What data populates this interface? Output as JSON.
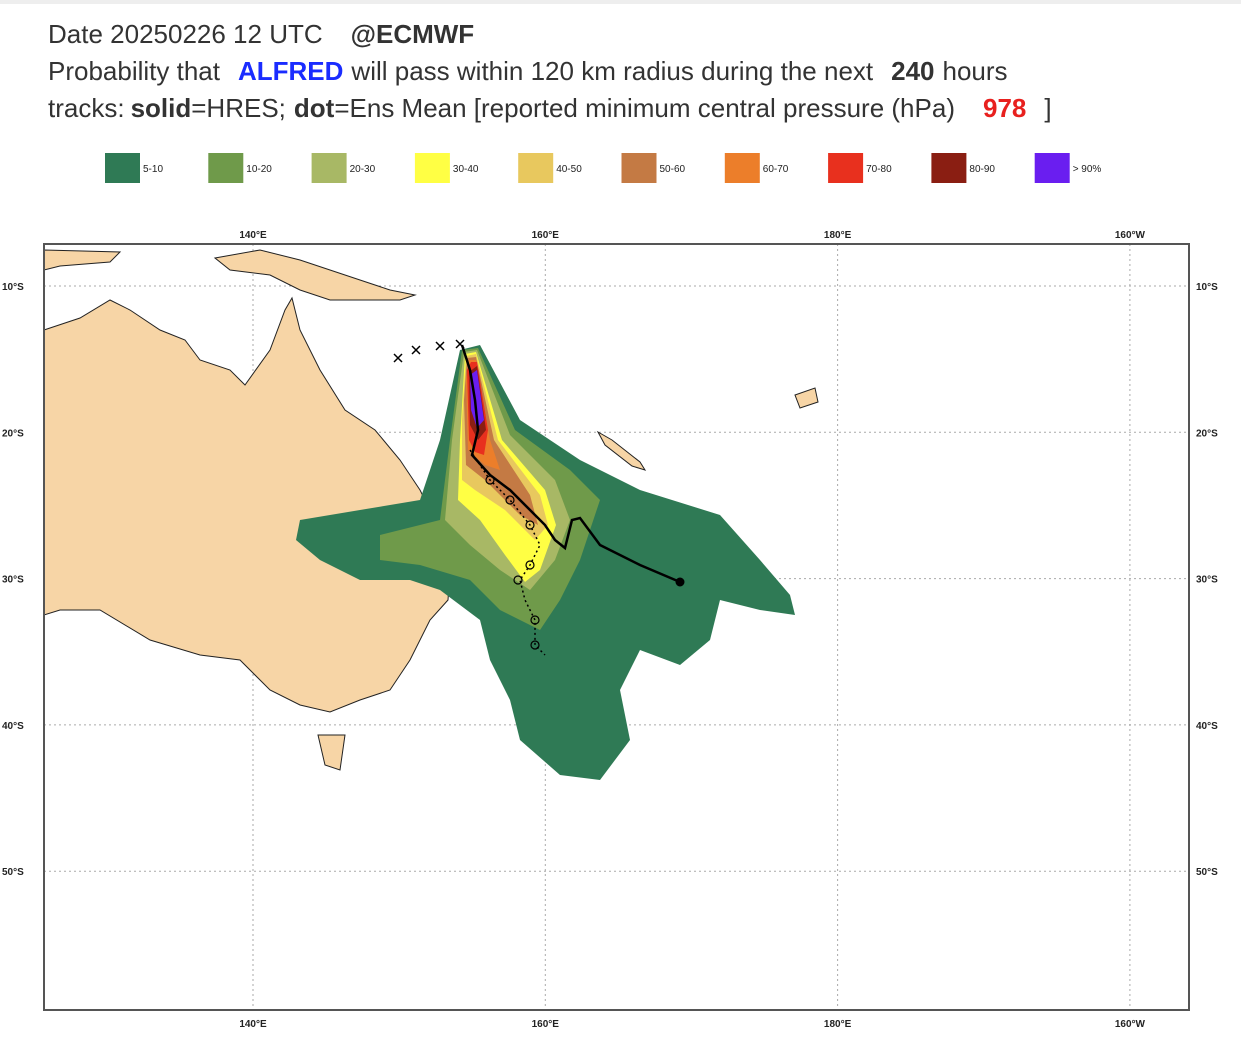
{
  "header": {
    "line1": {
      "date": "Date 20250226 12 UTC",
      "source": "@ECMWF"
    },
    "line2": {
      "prefix": "Probability that",
      "storm": "ALFRED",
      "middle": "will pass within 120 km radius during the next",
      "hours": "240",
      "suffix": "hours"
    },
    "line3": {
      "prefix": "tracks:",
      "solid": "solid",
      "solid_desc": "=HRES;",
      "dot": "dot",
      "dot_desc": "=Ens Mean [reported minimum central pressure (hPa)",
      "pressure": "978",
      "close": "]"
    }
  },
  "legend": [
    {
      "label": "5-10",
      "color": "#2f7a55"
    },
    {
      "label": "10-20",
      "color": "#6f9a4a"
    },
    {
      "label": "20-30",
      "color": "#a8b865"
    },
    {
      "label": "30-40",
      "color": "#ffff44"
    },
    {
      "label": "40-50",
      "color": "#e8c85e"
    },
    {
      "label": "50-60",
      "color": "#c47a44"
    },
    {
      "label": "60-70",
      "color": "#ec7e2a"
    },
    {
      "label": "70-80",
      "color": "#e8301e"
    },
    {
      "label": "80-90",
      "color": "#8a1e12"
    },
    {
      "label": "> 90%",
      "color": "#6a1ef0"
    }
  ],
  "map": {
    "lon_labels": [
      "140°E",
      "160°E",
      "180°E",
      "160°W"
    ],
    "lat_labels": [
      "10°S",
      "20°S",
      "30°S",
      "40°S",
      "50°S"
    ]
  }
}
